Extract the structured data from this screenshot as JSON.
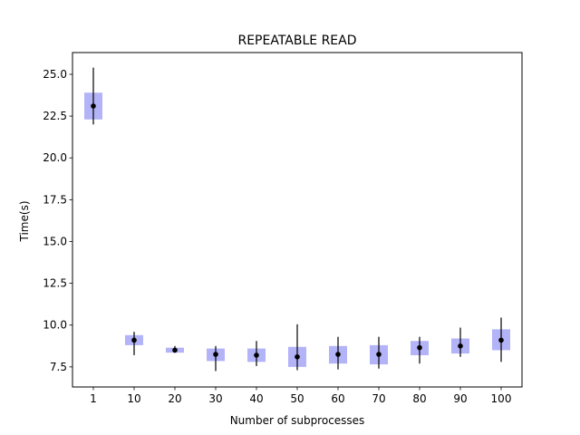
{
  "chart_data": {
    "type": "box",
    "title": "REPEATABLE READ",
    "xlabel": "Number of subprocesses",
    "ylabel": "Time(s)",
    "categories": [
      "1",
      "10",
      "20",
      "30",
      "40",
      "50",
      "60",
      "70",
      "80",
      "90",
      "100"
    ],
    "yticks": [
      "7.5",
      "10.0",
      "12.5",
      "15.0",
      "17.5",
      "20.0",
      "22.5",
      "25.0"
    ],
    "ylim": [
      6.3,
      26.3
    ],
    "grid": false,
    "box_color": "#b3b3f7",
    "series": [
      {
        "name": "1",
        "median": 23.1,
        "q1": 22.3,
        "q3": 23.9,
        "min": 22.0,
        "max": 25.4
      },
      {
        "name": "10",
        "median": 9.1,
        "q1": 8.8,
        "q3": 9.4,
        "min": 8.2,
        "max": 9.6
      },
      {
        "name": "20",
        "median": 8.5,
        "q1": 8.35,
        "q3": 8.65,
        "min": 8.35,
        "max": 8.75
      },
      {
        "name": "30",
        "median": 8.25,
        "q1": 7.85,
        "q3": 8.6,
        "min": 7.25,
        "max": 8.75
      },
      {
        "name": "40",
        "median": 8.2,
        "q1": 7.8,
        "q3": 8.6,
        "min": 7.55,
        "max": 9.05
      },
      {
        "name": "50",
        "median": 8.1,
        "q1": 7.5,
        "q3": 8.7,
        "min": 7.3,
        "max": 10.05
      },
      {
        "name": "60",
        "median": 8.25,
        "q1": 7.7,
        "q3": 8.75,
        "min": 7.35,
        "max": 9.3
      },
      {
        "name": "70",
        "median": 8.25,
        "q1": 7.65,
        "q3": 8.8,
        "min": 7.4,
        "max": 9.3
      },
      {
        "name": "80",
        "median": 8.65,
        "q1": 8.2,
        "q3": 9.05,
        "min": 7.7,
        "max": 9.3
      },
      {
        "name": "90",
        "median": 8.75,
        "q1": 8.3,
        "q3": 9.2,
        "min": 8.1,
        "max": 9.85
      },
      {
        "name": "100",
        "median": 9.1,
        "q1": 8.5,
        "q3": 9.75,
        "min": 7.8,
        "max": 10.45
      }
    ]
  }
}
